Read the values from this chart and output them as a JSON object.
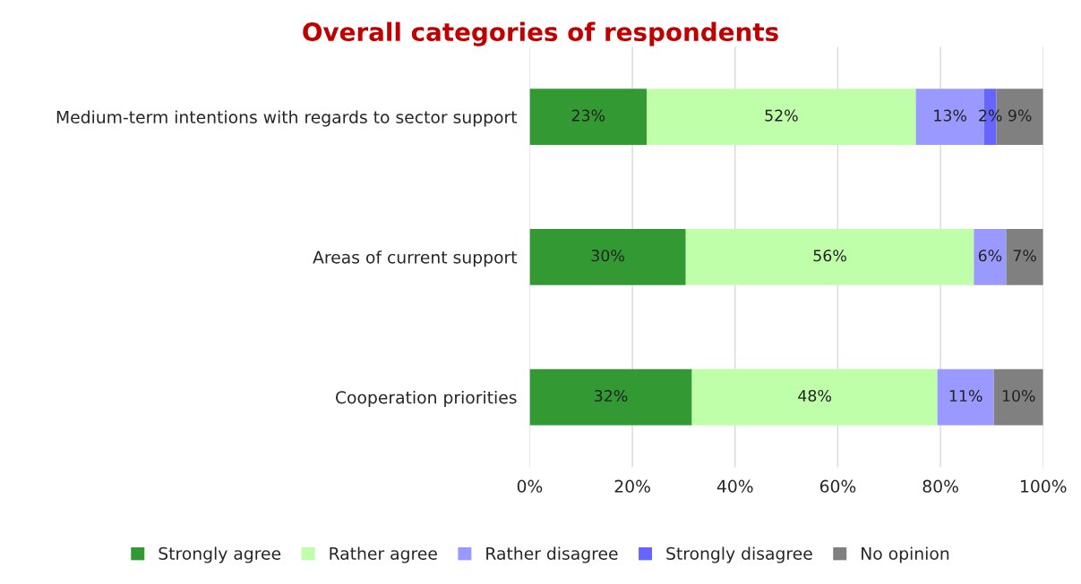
{
  "chart_data": {
    "type": "bar",
    "orientation": "horizontal",
    "stacked": true,
    "title": "Overall categories of respondents",
    "categories": [
      "Medium-term intentions with regards to sector support",
      "Areas of current support",
      "Cooperation priorities"
    ],
    "series": [
      {
        "name": "Strongly agree",
        "color": "#339933",
        "values": [
          22.8,
          30.4,
          31.6
        ],
        "value_labels": [
          "23%",
          "30%",
          "32%"
        ]
      },
      {
        "name": "Rather agree",
        "color": "#c0ffaa",
        "values": [
          52.4,
          56.1,
          47.8
        ],
        "value_labels": [
          "52%",
          "56%",
          "48%"
        ]
      },
      {
        "name": "Rather disagree",
        "color": "#9999ff",
        "values": [
          13.3,
          6.3,
          11.0
        ],
        "value_labels": [
          "13%",
          "6%",
          "11%"
        ]
      },
      {
        "name": "Strongly disagree",
        "color": "#6666ff",
        "values": [
          2.4,
          0,
          0
        ],
        "value_labels": [
          "2%",
          null,
          null
        ]
      },
      {
        "name": "No opinion",
        "color": "#808080",
        "values": [
          9.1,
          7.2,
          9.6
        ],
        "value_labels": [
          "9%",
          "7%",
          "10%"
        ]
      }
    ],
    "xlim": [
      0,
      100
    ],
    "xticks": [
      {
        "value": 0,
        "label": "0%"
      },
      {
        "value": 20,
        "label": "20%"
      },
      {
        "value": 40,
        "label": "40%"
      },
      {
        "value": 60,
        "label": "60%"
      },
      {
        "value": 80,
        "label": "80%"
      },
      {
        "value": 100,
        "label": "100%"
      }
    ],
    "grid": "x",
    "legend": "bottom"
  }
}
